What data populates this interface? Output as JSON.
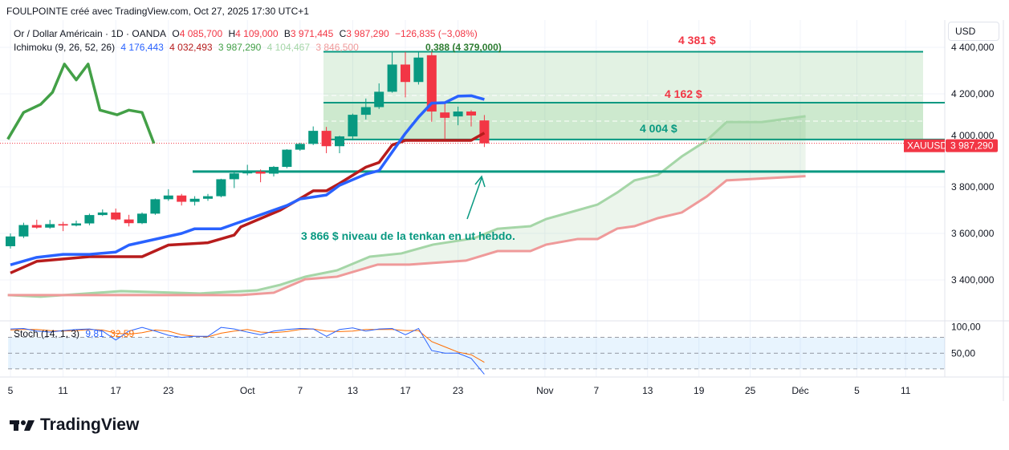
{
  "header": {
    "title": "FOULPOINTE créé avec TradingView.com, Oct 27, 2025 17:30 UTC+1"
  },
  "legend": {
    "symbol": "Or / Dollar Américain · 1D · OANDA",
    "o_label": "O",
    "o": "4 085,700",
    "h_label": "H",
    "h": "4 109,000",
    "l_label": "B",
    "l": "3 971,445",
    "c_label": "C",
    "c": "3 987,290",
    "change": "−126,835 (−3,08%)",
    "ichimoku_name": "Ichimoku (9, 26, 52, 26)",
    "ichimoku_values": [
      "4 176,443",
      "4 032,493",
      "3 987,290",
      "4 104,467",
      "3 846,500"
    ],
    "overlap_text": "0,388 (4 379,000)",
    "stoch_name": "Stoch (14, 1, 3)",
    "stoch_k": "9,81",
    "stoch_d": "32,59"
  },
  "currency_button": "USD",
  "price_tag": {
    "symbol": "XAUUSD",
    "price": "3 987,290"
  },
  "annotations": {
    "level_4381": "4 381 $",
    "level_4162": "4 162 $",
    "level_4004": "4 004 $",
    "tenkan_note": "3 866 $ niveau de la tenkan en ut hebdo."
  },
  "brand": "TradingView",
  "colors": {
    "up": "#089981",
    "down": "#f23645",
    "tenkan": "#2962ff",
    "kijun": "#b71c1c",
    "chikou": "#43a047",
    "senkou_a": "#a5d6a7",
    "senkou_b": "#ef9a9a",
    "stoch_k": "#2962ff",
    "stoch_d": "#ff6d00",
    "drawing": "#089981"
  },
  "chart_data": {
    "type": "candlestick",
    "title": "Or / Dollar Américain · 1D · OANDA",
    "ylim": [
      3300,
      4420
    ],
    "y_ticks": [
      {
        "v": 4400,
        "label": "4 400,000"
      },
      {
        "v": 4200,
        "label": "4 200,000"
      },
      {
        "v": 4000,
        "label": "4 000,000"
      },
      {
        "v": 3800,
        "label": "3 800,000"
      },
      {
        "v": 3600,
        "label": "3 600,000"
      },
      {
        "v": 3400,
        "label": "3 400,000"
      }
    ],
    "x_ticks": [
      {
        "i": 0,
        "label": "5"
      },
      {
        "i": 4,
        "label": "11"
      },
      {
        "i": 8,
        "label": "17"
      },
      {
        "i": 12,
        "label": "23"
      },
      {
        "i": 18,
        "label": "Oct"
      },
      {
        "i": 22,
        "label": "7"
      },
      {
        "i": 26,
        "label": "13"
      },
      {
        "i": 30,
        "label": "17"
      },
      {
        "i": 34,
        "label": "23"
      },
      {
        "i": 40.6,
        "label": "Nov"
      },
      {
        "i": 44.5,
        "label": "7"
      },
      {
        "i": 48.4,
        "label": "13"
      },
      {
        "i": 52.3,
        "label": "19"
      },
      {
        "i": 56.2,
        "label": "25"
      },
      {
        "i": 60,
        "label": "Déc"
      },
      {
        "i": 64.3,
        "label": "5"
      },
      {
        "i": 68,
        "label": "11"
      }
    ],
    "candles": [
      [
        3545,
        3600,
        3535,
        3587
      ],
      [
        3587,
        3646,
        3580,
        3636
      ],
      [
        3636,
        3659,
        3620,
        3625
      ],
      [
        3625,
        3658,
        3620,
        3640
      ],
      [
        3640,
        3650,
        3610,
        3634
      ],
      [
        3634,
        3655,
        3630,
        3643
      ],
      [
        3643,
        3685,
        3635,
        3679
      ],
      [
        3679,
        3703,
        3675,
        3690
      ],
      [
        3690,
        3707,
        3655,
        3660
      ],
      [
        3660,
        3680,
        3630,
        3644
      ],
      [
        3644,
        3690,
        3640,
        3685
      ],
      [
        3685,
        3750,
        3680,
        3747
      ],
      [
        3747,
        3790,
        3740,
        3763
      ],
      [
        3763,
        3770,
        3720,
        3736
      ],
      [
        3736,
        3760,
        3720,
        3749
      ],
      [
        3749,
        3770,
        3740,
        3760
      ],
      [
        3760,
        3835,
        3755,
        3833
      ],
      [
        3833,
        3870,
        3795,
        3858
      ],
      [
        3858,
        3895,
        3850,
        3866
      ],
      [
        3866,
        3875,
        3820,
        3857
      ],
      [
        3857,
        3890,
        3845,
        3886
      ],
      [
        3886,
        3962,
        3880,
        3960
      ],
      [
        3960,
        3990,
        3955,
        3985
      ],
      [
        3985,
        4060,
        3980,
        4041
      ],
      [
        4041,
        4058,
        3945,
        3975
      ],
      [
        3975,
        4020,
        3945,
        4017
      ],
      [
        4017,
        4115,
        4000,
        4110
      ],
      [
        4110,
        4180,
        4090,
        4143
      ],
      [
        4143,
        4245,
        4135,
        4209
      ],
      [
        4209,
        4379,
        4205,
        4326
      ],
      [
        4326,
        4380,
        4185,
        4251
      ],
      [
        4251,
        4381,
        4240,
        4356
      ],
      [
        4366,
        4381,
        4080,
        4124
      ],
      [
        4120,
        4161,
        4004,
        4097
      ],
      [
        4103,
        4145,
        4065,
        4124
      ],
      [
        4124,
        4130,
        4060,
        4107
      ],
      [
        4085.7,
        4109,
        3971.445,
        3987.29
      ]
    ],
    "ichimoku": {
      "tenkan": [
        [
          0,
          3465
        ],
        [
          2,
          3497
        ],
        [
          4,
          3510
        ],
        [
          6,
          3510
        ],
        [
          8,
          3520
        ],
        [
          9,
          3550
        ],
        [
          11,
          3575
        ],
        [
          13,
          3600
        ],
        [
          14,
          3620
        ],
        [
          16,
          3620
        ],
        [
          17,
          3640
        ],
        [
          19,
          3680
        ],
        [
          21,
          3720
        ],
        [
          22,
          3748
        ],
        [
          24,
          3765
        ],
        [
          25,
          3807
        ],
        [
          27,
          3855
        ],
        [
          28,
          3870
        ],
        [
          29,
          3950
        ],
        [
          30,
          4030
        ],
        [
          31,
          4100
        ],
        [
          32,
          4160
        ],
        [
          33,
          4162
        ],
        [
          34,
          4190
        ],
        [
          35,
          4192
        ],
        [
          36,
          4176
        ]
      ],
      "kijun": [
        [
          0,
          3430
        ],
        [
          2,
          3480
        ],
        [
          4,
          3490
        ],
        [
          6,
          3500
        ],
        [
          10,
          3500
        ],
        [
          12,
          3550
        ],
        [
          15,
          3560
        ],
        [
          17,
          3593
        ],
        [
          17.5,
          3628
        ],
        [
          20.5,
          3700
        ],
        [
          23,
          3783
        ],
        [
          24,
          3783
        ],
        [
          25,
          3815
        ],
        [
          27,
          3885
        ],
        [
          28,
          3905
        ],
        [
          29,
          3980
        ],
        [
          30,
          4000
        ],
        [
          35,
          4000
        ],
        [
          36,
          4032
        ]
      ],
      "chikou": [
        [
          -0.2,
          4005
        ],
        [
          1,
          4120
        ],
        [
          2.3,
          4155
        ],
        [
          3.2,
          4207
        ],
        [
          4.1,
          4328
        ],
        [
          5,
          4260
        ],
        [
          5.9,
          4328
        ],
        [
          6.8,
          4130
        ],
        [
          8.1,
          4110
        ],
        [
          9,
          4130
        ],
        [
          10,
          4120
        ],
        [
          10.9,
          3987
        ]
      ],
      "senkou_a": [
        [
          -0.2,
          3335
        ],
        [
          2.3,
          3328
        ],
        [
          8.4,
          3352
        ],
        [
          14.4,
          3342
        ],
        [
          18.7,
          3355
        ],
        [
          20.5,
          3379
        ],
        [
          22.4,
          3414
        ],
        [
          24.8,
          3441
        ],
        [
          27.3,
          3500
        ],
        [
          29.7,
          3514
        ],
        [
          32.1,
          3552
        ],
        [
          35.2,
          3579
        ],
        [
          37,
          3620
        ],
        [
          39.5,
          3631
        ],
        [
          40.7,
          3662
        ],
        [
          43.1,
          3700
        ],
        [
          44.6,
          3724
        ],
        [
          46.1,
          3776
        ],
        [
          47.4,
          3828
        ],
        [
          49.2,
          3852
        ],
        [
          51,
          3931
        ],
        [
          52.9,
          4000
        ],
        [
          54.4,
          4079
        ],
        [
          57.1,
          4079
        ],
        [
          60.4,
          4104
        ]
      ],
      "senkou_b": [
        [
          -0.2,
          3335
        ],
        [
          17.5,
          3335
        ],
        [
          20,
          3345
        ],
        [
          22.4,
          3403
        ],
        [
          24.8,
          3414
        ],
        [
          27.9,
          3466
        ],
        [
          30.3,
          3466
        ],
        [
          34.6,
          3483
        ],
        [
          37,
          3524
        ],
        [
          39.5,
          3524
        ],
        [
          40.7,
          3552
        ],
        [
          43.1,
          3576
        ],
        [
          44.6,
          3576
        ],
        [
          46.1,
          3621
        ],
        [
          47.4,
          3631
        ],
        [
          49.2,
          3666
        ],
        [
          51,
          3690
        ],
        [
          52.9,
          3759
        ],
        [
          54.4,
          3828
        ],
        [
          60.4,
          3846
        ]
      ]
    },
    "levels": {
      "zone_top": 4381,
      "zone_mid": 4162,
      "zone_bottom": 4004,
      "tenkan_weekly": 3866,
      "current": 3987.29
    },
    "stochastic": {
      "ylim": [
        0,
        100
      ],
      "bands": [
        80,
        50,
        20
      ],
      "y_ticks": [
        {
          "v": 100,
          "label": "100,00"
        },
        {
          "v": 50,
          "label": "50,00"
        }
      ],
      "k": [
        96,
        97,
        92,
        90,
        93,
        95,
        96,
        92,
        75,
        92,
        99,
        92,
        84,
        80,
        82,
        82,
        99,
        96,
        90,
        85,
        92,
        95,
        97,
        96,
        82,
        95,
        98,
        92,
        96,
        97,
        85,
        97,
        55,
        50,
        50,
        40,
        9.81
      ],
      "d": [
        94,
        95,
        95,
        93,
        92,
        93,
        95,
        94,
        88,
        86,
        89,
        94,
        92,
        85,
        82,
        81,
        88,
        92,
        95,
        90,
        89,
        91,
        95,
        96,
        92,
        91,
        92,
        95,
        95,
        95,
        93,
        93,
        72,
        62,
        52,
        47,
        32.59
      ]
    }
  }
}
